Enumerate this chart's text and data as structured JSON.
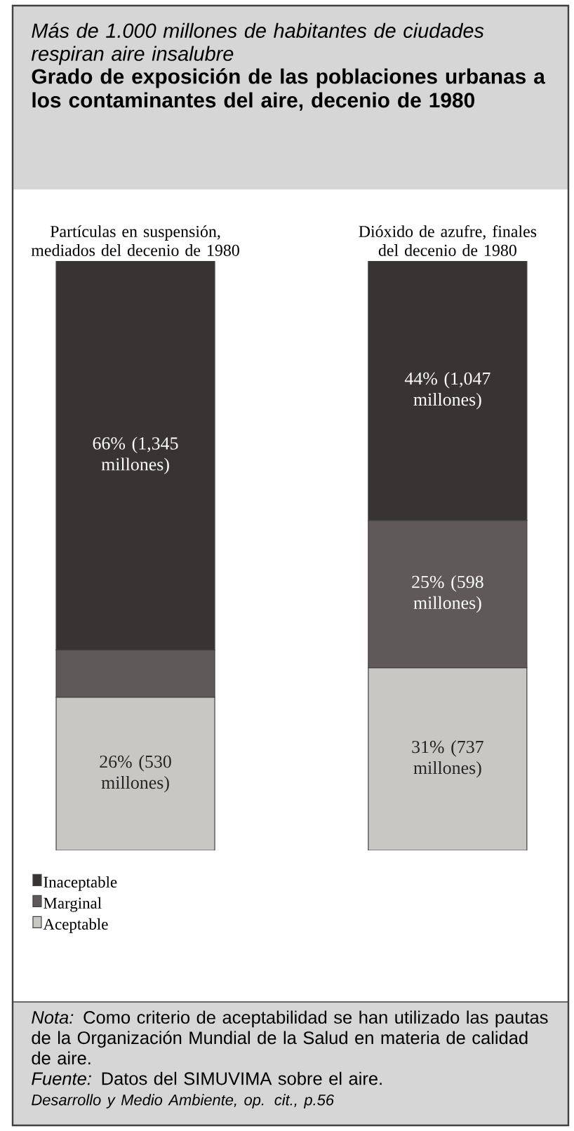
{
  "chart_data": {
    "type": "bar",
    "subtitle": "Más de 1.000 millones de habitantes de ciudades respiran aire insalubre",
    "title": "Grado de exposición de las poblaciones urbanas a los contaminantes del aire, decenio de 1980",
    "categories": [
      "Partículas en suspensión, mediados del decenio de 1980",
      "Dióxido de azufre, finales del decenio de 1980"
    ],
    "stacked": true,
    "ylim": [
      0,
      100
    ],
    "tick_labels": "x",
    "legend": "bottom",
    "series": [
      {
        "name": "Aceptable",
        "color": "#c9c7c4",
        "values": [
          26,
          31
        ],
        "value_labels": [
          "26% (530 millones)",
          "31% (737 millones)"
        ]
      },
      {
        "name": "Marginal",
        "color": "#5f5a59",
        "values": [
          8,
          25
        ],
        "value_labels": [
          null,
          "25% (598 millones)"
        ]
      },
      {
        "name": "Inaceptable",
        "color": "#393434",
        "values": [
          66,
          44
        ],
        "value_labels": [
          "66% (1,345 millones)",
          "44% (1,047 millones)"
        ]
      }
    ],
    "annotations": [
      "*Nota:* Como criterio de aceptabilidad se han utilizado las pautas de la Organización Mundial de la Salud en materia de calidad de aire.",
      "*Fuente:* Datos del SIMUVIMA sobre el aire.",
      "Desarrollo y Medio Ambiente, op. cit., p.56"
    ]
  }
}
